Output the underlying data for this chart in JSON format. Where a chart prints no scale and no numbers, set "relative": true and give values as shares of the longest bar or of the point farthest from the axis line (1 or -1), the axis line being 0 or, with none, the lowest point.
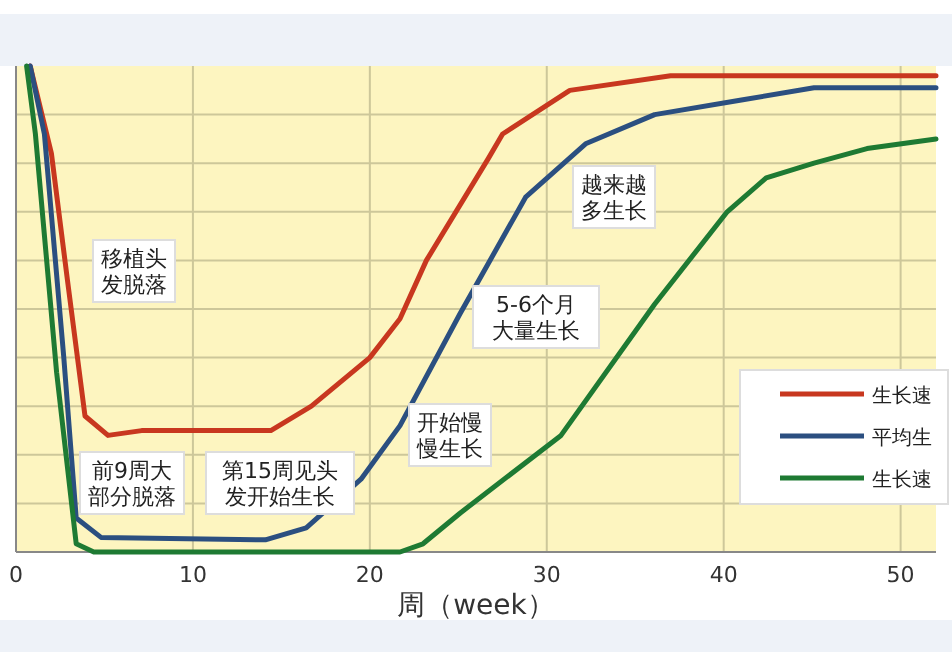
{
  "chart_data": {
    "type": "line",
    "relative": true,
    "xlabel": "周（week）",
    "xlim": [
      0,
      52
    ],
    "xticks": [
      0,
      10,
      20,
      30,
      40,
      50
    ],
    "grid": true,
    "legend": "bottom right",
    "marker": "none",
    "line_style": "solid",
    "series": [
      {
        "name": "生长速",
        "color": "#c8371f",
        "x": [
          0.8,
          2.0,
          2.9,
          3.9,
          5.2,
          7.1,
          14.4,
          16.7,
          20,
          21.7,
          23.2,
          26.7,
          27.5,
          31.3,
          37,
          52
        ],
        "values": [
          1.0,
          0.82,
          0.56,
          0.28,
          0.24,
          0.25,
          0.25,
          0.3,
          0.4,
          0.48,
          0.6,
          0.81,
          0.86,
          0.95,
          0.98,
          0.98
        ]
      },
      {
        "name": "平均生",
        "color": "#2b4f80",
        "x": [
          0.8,
          1.6,
          2.7,
          3.4,
          4.8,
          14.1,
          16.4,
          19.5,
          21.7,
          25.1,
          28.8,
          32.2,
          36.1,
          41,
          45.1,
          52
        ],
        "values": [
          1.0,
          0.86,
          0.4,
          0.07,
          0.03,
          0.025,
          0.05,
          0.15,
          0.26,
          0.49,
          0.73,
          0.84,
          0.9,
          0.93,
          0.955,
          0.955
        ]
      },
      {
        "name": "生长速",
        "color": "#1e7a33",
        "x": [
          0.6,
          1.1,
          2.3,
          3.4,
          4.4,
          21.7,
          23,
          25.1,
          30.8,
          36.1,
          40.2,
          42.4,
          45.1,
          48.1,
          52
        ],
        "values": [
          1.0,
          0.86,
          0.37,
          0.017,
          0.0,
          0.0,
          0.017,
          0.08,
          0.24,
          0.51,
          0.7,
          0.77,
          0.8,
          0.83,
          0.85
        ]
      }
    ],
    "annotations": [
      "移植头发脱落",
      "前9周大部分脱落",
      "第15周见头发开始生长",
      "开始慢慢生长",
      "5-6个月大量生长",
      "越来越多生长"
    ]
  }
}
